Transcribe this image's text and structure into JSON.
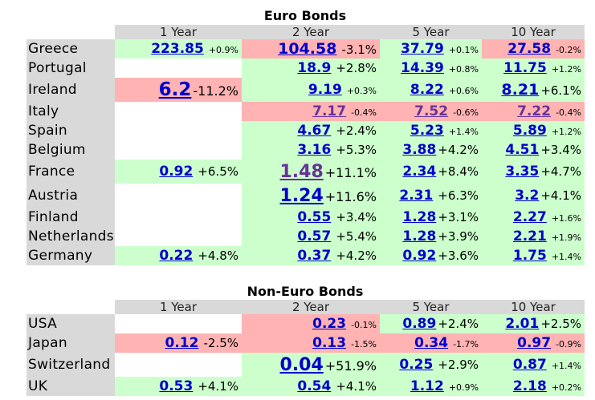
{
  "euro": {
    "title": "Euro Bonds",
    "columns": [
      "1 Year",
      "2 Year",
      "5 Year",
      "10 Year"
    ],
    "rows": [
      {
        "country": "Greece",
        "cells": [
          {
            "v": "223.85",
            "c": "+0.9%",
            "bg": "g",
            "vs": "sz-s",
            "cs": "cs"
          },
          {
            "v": "104.58",
            "c": "-3.1%",
            "bg": "r",
            "vs": "sz-m",
            "cs": "cm"
          },
          {
            "v": "37.79",
            "c": "+0.1%",
            "bg": "g",
            "vs": "sz-s",
            "cs": "cs"
          },
          {
            "v": "27.58",
            "c": "-0.2%",
            "bg": "r",
            "vs": "sz-s",
            "cs": "cs"
          }
        ]
      },
      {
        "country": "Portugal",
        "cells": [
          null,
          {
            "v": "18.9",
            "c": "+2.8%",
            "bg": "g",
            "vs": "sz-s",
            "cs": "cm"
          },
          {
            "v": "14.39",
            "c": "+0.8%",
            "bg": "g",
            "vs": "sz-s",
            "cs": "cs"
          },
          {
            "v": "11.75",
            "c": "+1.2%",
            "bg": "g",
            "vs": "sz-s",
            "cs": "cs"
          }
        ]
      },
      {
        "country": "Ireland",
        "cells": [
          {
            "v": "6.2",
            "c": "-11.2%",
            "bg": "r",
            "vs": "sz-xl",
            "cs": "cl",
            "tight": true
          },
          {
            "v": "9.19",
            "c": "+0.3%",
            "bg": "g",
            "vs": "sz-s",
            "cs": "cs"
          },
          {
            "v": "8.22",
            "c": "+0.6%",
            "bg": "g",
            "vs": "sz-s",
            "cs": "cs"
          },
          {
            "v": "8.21",
            "c": "+6.1%",
            "bg": "g",
            "vs": "sz-m",
            "cs": "cm",
            "tight": true
          }
        ]
      },
      {
        "country": "Italy",
        "cells": [
          null,
          {
            "v": "7.17",
            "c": "-0.4%",
            "bg": "r",
            "vs": "sz-s",
            "cs": "cs",
            "visited": true
          },
          {
            "v": "7.52",
            "c": "-0.6%",
            "bg": "r",
            "vs": "sz-s",
            "cs": "cs",
            "visited": true
          },
          {
            "v": "7.22",
            "c": "-0.4%",
            "bg": "r",
            "vs": "sz-s",
            "cs": "cs",
            "visited": true
          }
        ]
      },
      {
        "country": "Spain",
        "cells": [
          null,
          {
            "v": "4.67",
            "c": "+2.4%",
            "bg": "g",
            "vs": "sz-s",
            "cs": "cm"
          },
          {
            "v": "5.23",
            "c": "+1.4%",
            "bg": "g",
            "vs": "sz-s",
            "cs": "cs"
          },
          {
            "v": "5.89",
            "c": "+1.2%",
            "bg": "g",
            "vs": "sz-s",
            "cs": "cs"
          }
        ]
      },
      {
        "country": "Belgium",
        "cells": [
          null,
          {
            "v": "3.16",
            "c": "+5.3%",
            "bg": "g",
            "vs": "sz-s",
            "cs": "cm"
          },
          {
            "v": "3.88",
            "c": "+4.2%",
            "bg": "g",
            "vs": "sz-s",
            "cs": "cm",
            "tight": true
          },
          {
            "v": "4.51",
            "c": "+3.4%",
            "bg": "g",
            "vs": "sz-s",
            "cs": "cm",
            "tight": true
          }
        ]
      },
      {
        "country": "France",
        "cells": [
          {
            "v": "0.92",
            "c": "+6.5%",
            "bg": "g",
            "vs": "sz-s",
            "cs": "cm"
          },
          {
            "v": "1.48",
            "c": "+11.1%",
            "bg": "g",
            "vs": "sz-l",
            "cs": "cl",
            "visited": true,
            "tight": true
          },
          {
            "v": "2.34",
            "c": "+8.4%",
            "bg": "g",
            "vs": "sz-s",
            "cs": "cm",
            "tight": true
          },
          {
            "v": "3.35",
            "c": "+4.7%",
            "bg": "g",
            "vs": "sz-s",
            "cs": "cm",
            "tight": true
          }
        ]
      },
      {
        "country": "Austria",
        "cells": [
          null,
          {
            "v": "1.24",
            "c": "+11.6%",
            "bg": "g",
            "vs": "sz-l",
            "cs": "cl",
            "tight": true
          },
          {
            "v": "2.31",
            "c": "+6.3%",
            "bg": "g",
            "vs": "sz-s",
            "cs": "cm"
          },
          {
            "v": "3.2",
            "c": "+4.1%",
            "bg": "g",
            "vs": "sz-s",
            "cs": "cm",
            "tight": true
          }
        ]
      },
      {
        "country": "Finland",
        "cells": [
          null,
          {
            "v": "0.55",
            "c": "+3.4%",
            "bg": "g",
            "vs": "sz-s",
            "cs": "cm"
          },
          {
            "v": "1.28",
            "c": "+3.1%",
            "bg": "g",
            "vs": "sz-s",
            "cs": "cm",
            "tight": true
          },
          {
            "v": "2.27",
            "c": "+1.6%",
            "bg": "g",
            "vs": "sz-s",
            "cs": "cs"
          }
        ]
      },
      {
        "country": "Netherlands",
        "cells": [
          null,
          {
            "v": "0.57",
            "c": "+5.4%",
            "bg": "g",
            "vs": "sz-s",
            "cs": "cm"
          },
          {
            "v": "1.28",
            "c": "+3.9%",
            "bg": "g",
            "vs": "sz-s",
            "cs": "cm",
            "tight": true
          },
          {
            "v": "2.21",
            "c": "+1.9%",
            "bg": "g",
            "vs": "sz-s",
            "cs": "cs"
          }
        ]
      },
      {
        "country": "Germany",
        "cells": [
          {
            "v": "0.22",
            "c": "+4.8%",
            "bg": "g",
            "vs": "sz-s",
            "cs": "cm"
          },
          {
            "v": "0.37",
            "c": "+4.2%",
            "bg": "g",
            "vs": "sz-s",
            "cs": "cm"
          },
          {
            "v": "0.92",
            "c": "+3.6%",
            "bg": "g",
            "vs": "sz-s",
            "cs": "cm",
            "tight": true
          },
          {
            "v": "1.75",
            "c": "+1.4%",
            "bg": "g",
            "vs": "sz-s",
            "cs": "cs"
          }
        ]
      }
    ]
  },
  "nonEuro": {
    "title": "Non-Euro Bonds",
    "columns": [
      "1 Year",
      "2 Year",
      "5 Year",
      "10 Year"
    ],
    "rows": [
      {
        "country": "USA",
        "cells": [
          null,
          {
            "v": "0.23",
            "c": "-0.1%",
            "bg": "r",
            "vs": "sz-s",
            "cs": "cs"
          },
          {
            "v": "0.89",
            "c": "+2.4%",
            "bg": "g",
            "vs": "sz-s",
            "cs": "cm",
            "tight": true
          },
          {
            "v": "2.01",
            "c": "+2.5%",
            "bg": "g",
            "vs": "sz-s",
            "cs": "cm",
            "tight": true
          }
        ]
      },
      {
        "country": "Japan",
        "cells": [
          {
            "v": "0.12",
            "c": "-2.5%",
            "bg": "r",
            "vs": "sz-s",
            "cs": "cm"
          },
          {
            "v": "0.13",
            "c": "-1.5%",
            "bg": "r",
            "vs": "sz-s",
            "cs": "cs"
          },
          {
            "v": "0.34",
            "c": "-1.7%",
            "bg": "r",
            "vs": "sz-s",
            "cs": "cs"
          },
          {
            "v": "0.97",
            "c": "-0.9%",
            "bg": "r",
            "vs": "sz-s",
            "cs": "cs"
          }
        ]
      },
      {
        "country": "Switzerland",
        "cells": [
          null,
          {
            "v": "0.04",
            "c": "+51.9%",
            "bg": "g",
            "vs": "sz-l",
            "cs": "cl",
            "tight": true
          },
          {
            "v": "0.25",
            "c": "+2.9%",
            "bg": "g",
            "vs": "sz-s",
            "cs": "cm"
          },
          {
            "v": "0.87",
            "c": "+1.4%",
            "bg": "g",
            "vs": "sz-s",
            "cs": "cs"
          }
        ]
      },
      {
        "country": "UK",
        "cells": [
          {
            "v": "0.53",
            "c": "+4.1%",
            "bg": "g",
            "vs": "sz-s",
            "cs": "cm"
          },
          {
            "v": "0.54",
            "c": "+4.1%",
            "bg": "g",
            "vs": "sz-s",
            "cs": "cm"
          },
          {
            "v": "1.12",
            "c": "+0.9%",
            "bg": "g",
            "vs": "sz-s",
            "cs": "cs"
          },
          {
            "v": "2.18",
            "c": "+0.2%",
            "bg": "g",
            "vs": "sz-s",
            "cs": "cs"
          }
        ]
      }
    ]
  }
}
